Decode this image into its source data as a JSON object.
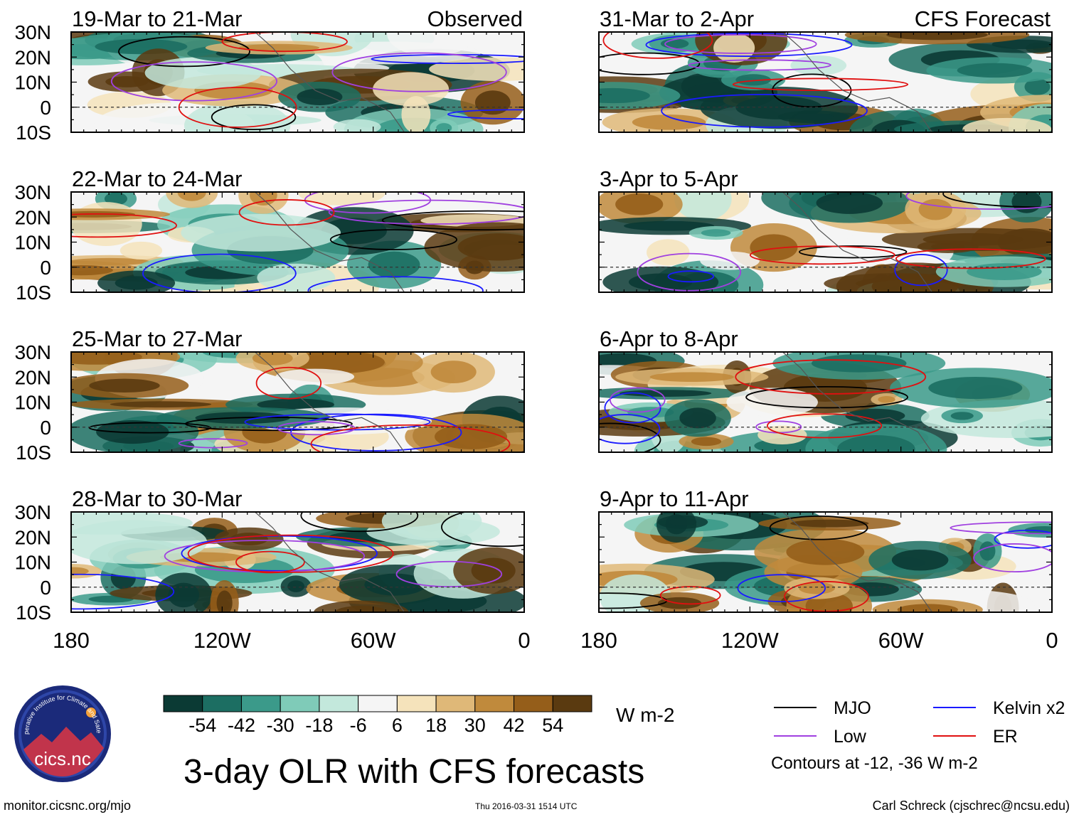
{
  "figure": {
    "title": "3-day OLR with CFS forecasts",
    "source_url": "monitor.cicsnc.org/mjo",
    "timestamp": "Thu 2016-03-31 1514 UTC",
    "author": "Carl Schreck (cjschrec@ncsu.edu)",
    "logo_text": "cics.nc",
    "logo_ring_text": "Cooperative Institute for Climate and Satellites"
  },
  "chart_data": {
    "type": "heatmap",
    "variable": "OLR anomaly",
    "units": "W m-2",
    "x_axis": {
      "range": [
        -180,
        0
      ],
      "ticks": [
        -180,
        -120,
        -60,
        0
      ],
      "tick_labels": [
        "180",
        "120W",
        "60W",
        "0"
      ]
    },
    "y_axis": {
      "range": [
        -10,
        30
      ],
      "ticks": [
        30,
        20,
        10,
        0,
        -10
      ],
      "tick_labels": [
        "30N",
        "20N",
        "10N",
        "0",
        "10S"
      ]
    },
    "columns": [
      {
        "header": "Observed",
        "panels": [
          "19-Mar to 21-Mar",
          "22-Mar to 24-Mar",
          "25-Mar to 27-Mar",
          "28-Mar to 30-Mar"
        ]
      },
      {
        "header": "CFS Forecast",
        "panels": [
          "31-Mar to 2-Apr",
          "3-Apr to 5-Apr",
          "6-Apr to 8-Apr",
          "9-Apr to 11-Apr"
        ]
      }
    ],
    "colorbar": {
      "levels": [
        "-54",
        "-42",
        "-30",
        "-18",
        "-6",
        "6",
        "18",
        "30",
        "42",
        "54"
      ],
      "colors": [
        "#0b3a34",
        "#1c6e62",
        "#3b9a8a",
        "#7fcbb8",
        "#c3e8dc",
        "#f5f5f5",
        "#f5e3bb",
        "#dfb878",
        "#c08a3c",
        "#955e1a",
        "#5a3a10"
      ],
      "units": "W m-2"
    },
    "legend": [
      {
        "label": "MJO",
        "color": "#000000"
      },
      {
        "label": "Kelvin x2",
        "color": "#1a1aff"
      },
      {
        "label": "Low",
        "color": "#a040e0"
      },
      {
        "label": "ER",
        "color": "#e01010"
      }
    ],
    "contour_note": "Contours at -12, -36 W m-2"
  }
}
